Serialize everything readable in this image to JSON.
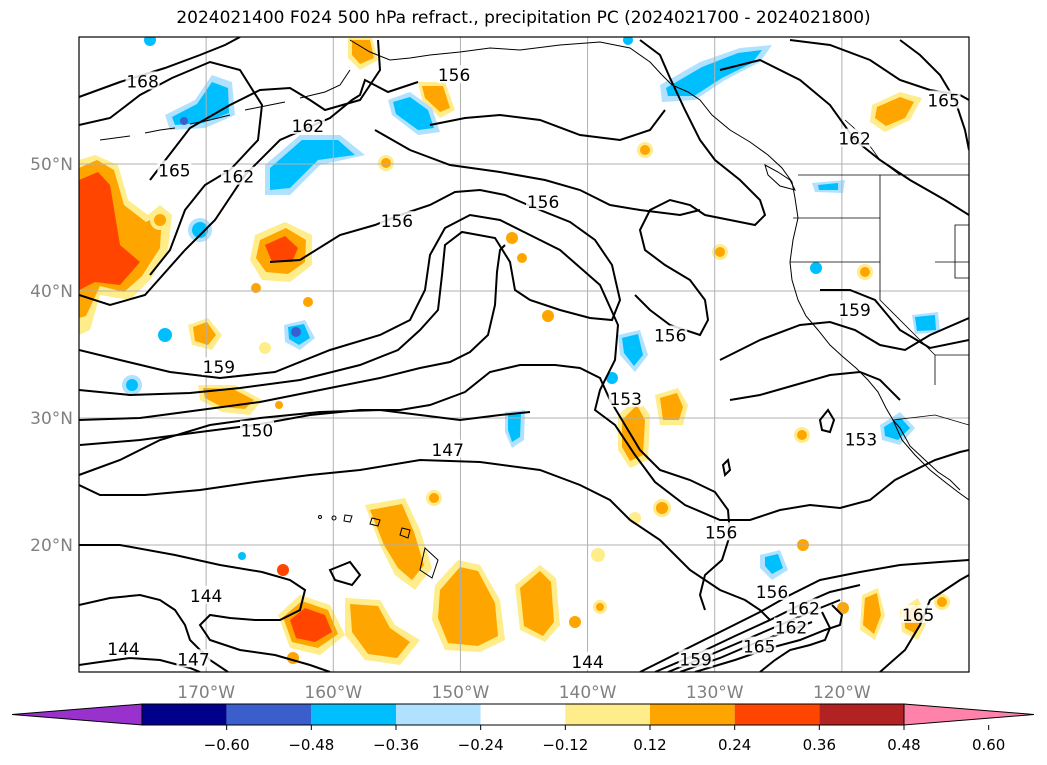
{
  "title": "2024021400 F024 500 hPa refract., precipitation PC (2024021700 - 2024021800)",
  "map": {
    "lat_labels": [
      {
        "label": "50°N",
        "lat": 50
      },
      {
        "label": "40°N",
        "lat": 40
      },
      {
        "label": "30°N",
        "lat": 30
      },
      {
        "label": "20°N",
        "lat": 20
      }
    ],
    "lon_labels": [
      {
        "label": "170°W",
        "lon": -170
      },
      {
        "label": "160°W",
        "lon": -160
      },
      {
        "label": "150°W",
        "lon": -150
      },
      {
        "label": "140°W",
        "lon": -140
      },
      {
        "label": "130°W",
        "lon": -130
      },
      {
        "label": "120°W",
        "lon": -120
      }
    ],
    "extent": {
      "lon_min": -180,
      "lon_max": -110,
      "lat_min": 10,
      "lat_max": 60
    },
    "contour_labels": [
      {
        "text": "168",
        "lon": -175,
        "lat": 56.5
      },
      {
        "text": "165",
        "lon": -172.5,
        "lat": 49.5
      },
      {
        "text": "162",
        "lon": -167.5,
        "lat": 49
      },
      {
        "text": "162",
        "lon": -162,
        "lat": 53
      },
      {
        "text": "156",
        "lon": -150.5,
        "lat": 57
      },
      {
        "text": "156",
        "lon": -155,
        "lat": 45.5
      },
      {
        "text": "156",
        "lon": -143.5,
        "lat": 47
      },
      {
        "text": "156",
        "lon": -133.5,
        "lat": 36.5
      },
      {
        "text": "159",
        "lon": -169,
        "lat": 34
      },
      {
        "text": "150",
        "lon": -166,
        "lat": 29
      },
      {
        "text": "147",
        "lon": -151,
        "lat": 27.5
      },
      {
        "text": "153",
        "lon": -137,
        "lat": 31.5
      },
      {
        "text": "156",
        "lon": -129.5,
        "lat": 21
      },
      {
        "text": "144",
        "lon": -170,
        "lat": 16
      },
      {
        "text": "144",
        "lon": -176.5,
        "lat": 11.8
      },
      {
        "text": "147",
        "lon": -171,
        "lat": 11
      },
      {
        "text": "144",
        "lon": -140,
        "lat": 10.8
      },
      {
        "text": "159",
        "lon": -131.5,
        "lat": 11
      },
      {
        "text": "165",
        "lon": -126.5,
        "lat": 12
      },
      {
        "text": "162",
        "lon": -124,
        "lat": 13.5
      },
      {
        "text": "162",
        "lon": -123,
        "lat": 15
      },
      {
        "text": "156",
        "lon": -125.5,
        "lat": 16.3
      },
      {
        "text": "159",
        "lon": -119,
        "lat": 38.5
      },
      {
        "text": "153",
        "lon": -118.5,
        "lat": 28.3
      },
      {
        "text": "162",
        "lon": -119,
        "lat": 52
      },
      {
        "text": "165",
        "lon": -112,
        "lat": 55
      },
      {
        "text": "165",
        "lon": -114,
        "lat": 14.5
      }
    ]
  },
  "colorbar": {
    "colors": [
      "#9932cc",
      "#00008b",
      "#3a5fcd",
      "#00bfff",
      "#b0e2ff",
      "#ffffff",
      "#ffec8b",
      "#ffa500",
      "#ff4500",
      "#b22222",
      "#ff82ab"
    ],
    "tick_labels": [
      "−0.60",
      "−0.48",
      "−0.36",
      "−0.24",
      "−0.12",
      "0.12",
      "0.24",
      "0.36",
      "0.48",
      "0.60"
    ]
  }
}
